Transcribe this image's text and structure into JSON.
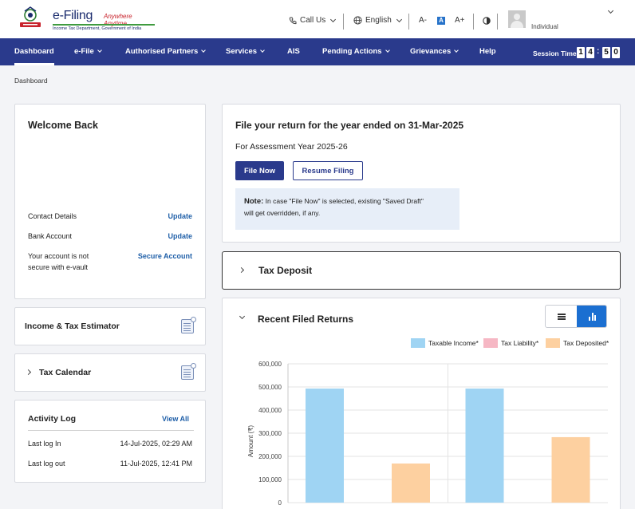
{
  "header": {
    "logo_title": "e-Filing",
    "logo_tagline": "Anywhere Anytime",
    "logo_subtitle": "Income Tax Department, Government of India",
    "call_us": "Call Us",
    "language": "English",
    "font_decrease": "A-",
    "font_default": "A",
    "font_increase": "A+",
    "user_role": "Individual"
  },
  "nav": {
    "items": [
      {
        "label": "Dashboard",
        "has_menu": false
      },
      {
        "label": "e-File",
        "has_menu": true
      },
      {
        "label": "Authorised Partners",
        "has_menu": true
      },
      {
        "label": "Services",
        "has_menu": true
      },
      {
        "label": "AIS",
        "has_menu": false
      },
      {
        "label": "Pending Actions",
        "has_menu": true
      },
      {
        "label": "Grievances",
        "has_menu": true
      },
      {
        "label": "Help",
        "has_menu": false
      }
    ],
    "session_label": "Session Time",
    "session_digits": [
      "1",
      "4",
      "5",
      "0"
    ]
  },
  "breadcrumb": "Dashboard",
  "welcome": {
    "title": "Welcome Back",
    "contact_label": "Contact Details",
    "contact_action": "Update",
    "bank_label": "Bank Account",
    "bank_action": "Update",
    "secure_line1": "Your account is not",
    "secure_line2": "secure with e-vault",
    "secure_action": "Secure Account"
  },
  "estimator": {
    "label": "Income & Tax Estimator"
  },
  "calendar": {
    "label": "Tax Calendar"
  },
  "activity": {
    "title": "Activity Log",
    "view_all": "View All",
    "last_login_label": "Last log In",
    "last_login_value": "14-Jul-2025, 02:29 AM",
    "last_logout_label": "Last log out",
    "last_logout_value": "11-Jul-2025, 12:41 PM"
  },
  "file_return": {
    "heading": "File your return for the year ended on 31-Mar-2025",
    "ay": "For Assessment Year 2025-26",
    "file_now": "File Now",
    "resume": "Resume Filing",
    "note_label": "Note:",
    "note_text_1": " In case \"File Now\" is selected, existing \"Saved Draft\"",
    "note_text_2": "will get overridden, if any."
  },
  "tax_deposit": {
    "label": "Tax Deposit"
  },
  "recent_returns": {
    "label": "Recent Filed Returns"
  },
  "colors": {
    "nav_bg": "#2a3a8c",
    "taxable_income": "#9fd4f3",
    "tax_liability": "#f6b7c4",
    "tax_deposited": "#fdd0a0",
    "toggle_active": "#1b6fd1"
  },
  "chart_data": {
    "type": "bar",
    "ylabel": "Amount (₹)",
    "ylim": [
      0,
      600000
    ],
    "yticks": [
      "0",
      "100,000",
      "200,000",
      "300,000",
      "400,000",
      "500,000",
      "600,000"
    ],
    "legend_position": "top-right",
    "series": [
      {
        "name": "Taxable Income*",
        "color": "#9fd4f3",
        "values": [
          493000,
          493000
        ]
      },
      {
        "name": "Tax Liability*",
        "color": "#f6b7c4",
        "values": [
          0,
          0
        ]
      },
      {
        "name": "Tax Deposited*",
        "color": "#fdd0a0",
        "values": [
          169000,
          283000
        ]
      }
    ]
  }
}
